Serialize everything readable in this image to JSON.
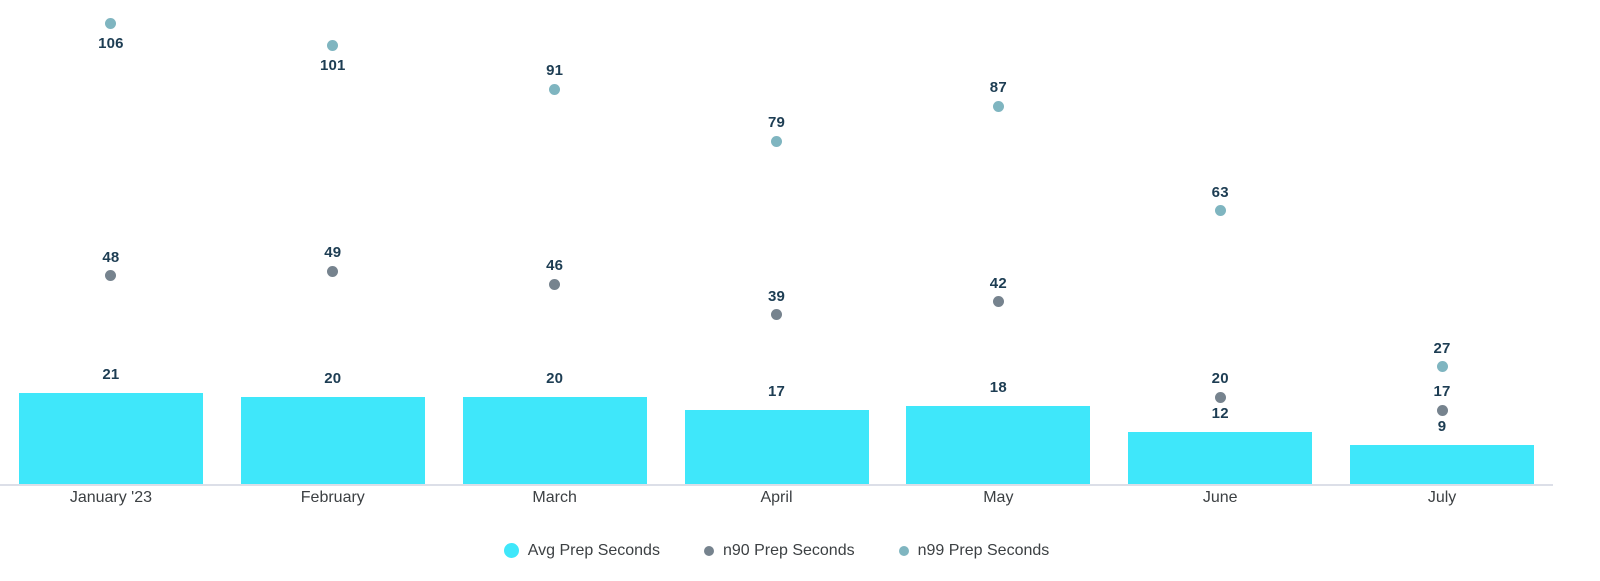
{
  "chart_data": {
    "type": "bar",
    "subtype": "bar-with-scatter-overlay",
    "categories": [
      "January '23",
      "February",
      "March",
      "April",
      "May",
      "June",
      "July"
    ],
    "series": [
      {
        "name": "Avg Prep Seconds",
        "type": "bar",
        "color": "#3FE7FA",
        "values": [
          21,
          20,
          20,
          17,
          18,
          12,
          9
        ]
      },
      {
        "name": "n90 Prep Seconds",
        "type": "scatter",
        "color": "#76838E",
        "values": [
          48,
          49,
          46,
          39,
          42,
          20,
          17
        ]
      },
      {
        "name": "n99 Prep Seconds",
        "type": "scatter",
        "color": "#7FB5C0",
        "values": [
          106,
          101,
          91,
          79,
          87,
          63,
          27
        ]
      }
    ],
    "title": "",
    "xlabel": "",
    "ylabel": "",
    "ylim": [
      0,
      112
    ],
    "grid": false,
    "y_axis_visible": false,
    "value_labels": true,
    "legend_position": "bottom",
    "value_label_color": "#1D3D53",
    "axis_label_color": "#3C4043",
    "axis_line_color": "#DCDFE8"
  }
}
